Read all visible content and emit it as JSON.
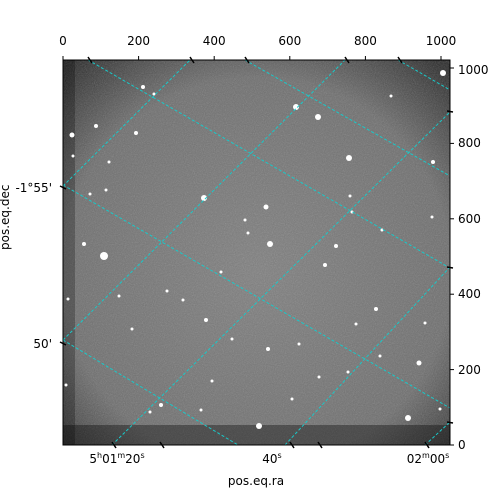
{
  "axes": {
    "xlabel": "pos.eq.ra",
    "ylabel": "pos.eq.dec",
    "pixel_x_ticks": [
      "0",
      "200",
      "400",
      "600",
      "800",
      "1000"
    ],
    "pixel_y_ticks": [
      "0",
      "200",
      "400",
      "600",
      "800",
      "1000"
    ],
    "dec_ticks": [
      "-1°55'",
      "50'"
    ],
    "ra_ticks": [
      {
        "h": "5",
        "m": "01",
        "s": "20",
        "hu": "h",
        "mu": "m",
        "su": "s"
      },
      {
        "s": "40",
        "su": "s"
      },
      {
        "m": "02",
        "s": "00",
        "mu": "m",
        "su": "s"
      }
    ]
  },
  "colors": {
    "grid": "#19c9c9",
    "background": "#7a7a7a"
  }
}
